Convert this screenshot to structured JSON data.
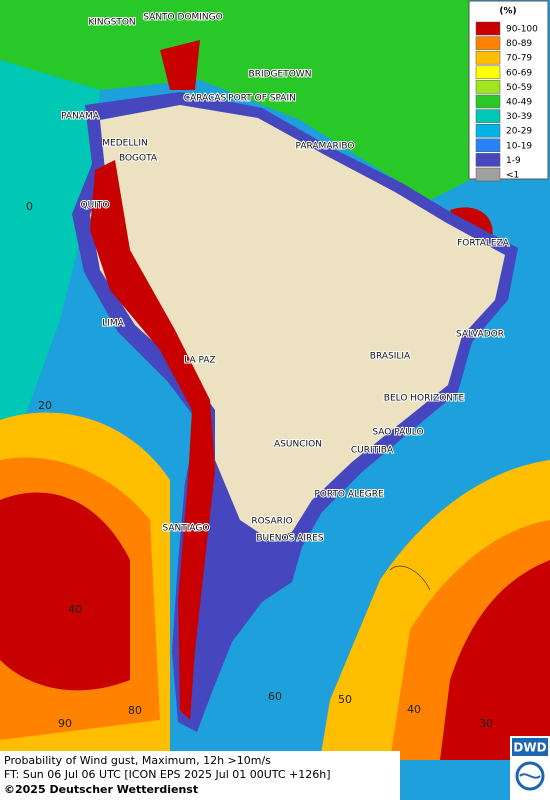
{
  "map": {
    "cities": [
      "KINGSTON",
      "SANTO DOMINGO",
      "BRIDGETOWN",
      "CARACAS",
      "PORT OF SPAIN",
      "PANAMA",
      "MEDELLIN",
      "BOGOTA",
      "PARAMARIBO",
      "QUITO",
      "FORTALEZA",
      "LIMA",
      "SALVADOR",
      "LA PAZ",
      "BRASILIA",
      "BELO HORIZONTE",
      "ASUNCION",
      "SAO PAULO",
      "CURITIBA",
      "PORTO ALEGRE",
      "ROSARIO",
      "SANTIAGO",
      "BUENOS AIRES"
    ],
    "grid_labels": [
      "0",
      "20",
      "40",
      "90",
      "80",
      "60",
      "50",
      "40",
      "30"
    ]
  },
  "legend": {
    "title": "(%)",
    "items": [
      {
        "label": "90-100",
        "color": "#c80000"
      },
      {
        "label": "80-89",
        "color": "#ff8200"
      },
      {
        "label": "70-79",
        "color": "#ffbe00"
      },
      {
        "label": "60-69",
        "color": "#ffff00"
      },
      {
        "label": "50-59",
        "color": "#a0e61e"
      },
      {
        "label": "40-49",
        "color": "#28c828"
      },
      {
        "label": "30-39",
        "color": "#00c8b4"
      },
      {
        "label": "20-29",
        "color": "#00b4e6"
      },
      {
        "label": "10-19",
        "color": "#2882ff"
      },
      {
        "label": "1-9",
        "color": "#4646be"
      },
      {
        "label": "<1",
        "color": "#a0a0a0"
      }
    ]
  },
  "caption": {
    "line1": "Probability of Wind gust, Maximum, 12h >10m/s",
    "line2": "FT: Sun 06 Jul 06 UTC [ICON EPS 2025 Jul 01 00UTC +126h]",
    "line3": "©2025 Deutscher Wetterdienst"
  },
  "logo": {
    "text": "DWD"
  }
}
